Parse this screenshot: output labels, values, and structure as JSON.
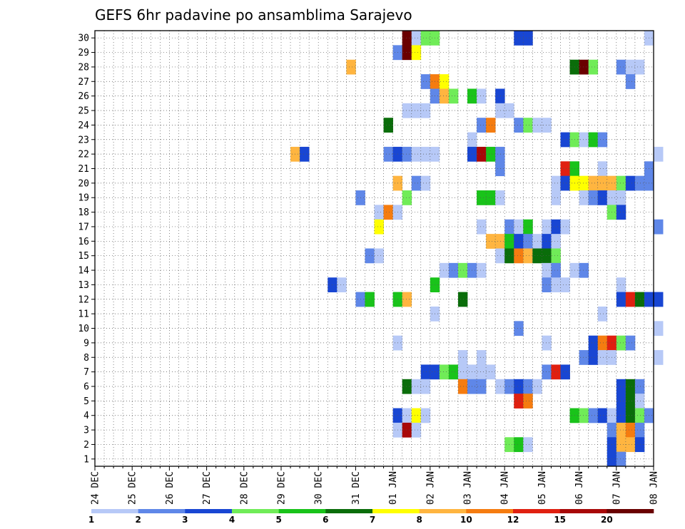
{
  "chart_data": {
    "type": "heatmap",
    "title": "GEFS 6hr padavine po ansamblima Sarajevo",
    "x_labels": [
      "24 DEC",
      "25 DEC",
      "26 DEC",
      "27 DEC",
      "28 DEC",
      "29 DEC",
      "30 DEC",
      "31 DEC",
      "01 JAN",
      "02 JAN",
      "03 JAN",
      "04 JAN",
      "05 JAN",
      "06 JAN",
      "07 JAN",
      "08 JAN"
    ],
    "x_step_hours": 6,
    "y_range": [
      1,
      30
    ],
    "y_labels": [
      "1",
      "2",
      "3",
      "4",
      "5",
      "6",
      "7",
      "8",
      "9",
      "10",
      "11",
      "12",
      "13",
      "14",
      "15",
      "16",
      "17",
      "18",
      "19",
      "20",
      "21",
      "22",
      "23",
      "24",
      "25",
      "26",
      "27",
      "28",
      "29",
      "30"
    ],
    "grid": true,
    "colorbar": {
      "labels": [
        "1",
        "2",
        "3",
        "4",
        "5",
        "6",
        "7",
        "8",
        "10",
        "12",
        "15",
        "20"
      ],
      "colors": [
        "#b7c9f7",
        "#5f87e8",
        "#1846d3",
        "#70ec58",
        "#19c31a",
        "#0a6d0a",
        "#ffff00",
        "#ffb540",
        "#f57c10",
        "#e02010",
        "#a80808",
        "#6a0000"
      ]
    },
    "cells": [
      {
        "member": 30,
        "slot": 33,
        "level": 12
      },
      {
        "member": 30,
        "slot": 34,
        "level": 1
      },
      {
        "member": 30,
        "slot": 35,
        "level": 4
      },
      {
        "member": 30,
        "slot": 36,
        "level": 4
      },
      {
        "member": 30,
        "slot": 45,
        "level": 3
      },
      {
        "member": 30,
        "slot": 46,
        "level": 3
      },
      {
        "member": 30,
        "slot": 59,
        "level": 1
      },
      {
        "member": 29,
        "slot": 32,
        "level": 2
      },
      {
        "member": 29,
        "slot": 33,
        "level": 12
      },
      {
        "member": 29,
        "slot": 34,
        "level": 7
      },
      {
        "member": 28,
        "slot": 27,
        "level": 8
      },
      {
        "member": 28,
        "slot": 51,
        "level": 6
      },
      {
        "member": 28,
        "slot": 52,
        "level": 12
      },
      {
        "member": 28,
        "slot": 53,
        "level": 4
      },
      {
        "member": 28,
        "slot": 56,
        "level": 2
      },
      {
        "member": 28,
        "slot": 57,
        "level": 1
      },
      {
        "member": 28,
        "slot": 58,
        "level": 1
      },
      {
        "member": 27,
        "slot": 35,
        "level": 2
      },
      {
        "member": 27,
        "slot": 36,
        "level": 9
      },
      {
        "member": 27,
        "slot": 37,
        "level": 7
      },
      {
        "member": 27,
        "slot": 57,
        "level": 2
      },
      {
        "member": 26,
        "slot": 36,
        "level": 2
      },
      {
        "member": 26,
        "slot": 37,
        "level": 8
      },
      {
        "member": 26,
        "slot": 38,
        "level": 4
      },
      {
        "member": 26,
        "slot": 40,
        "level": 5
      },
      {
        "member": 26,
        "slot": 41,
        "level": 1
      },
      {
        "member": 26,
        "slot": 43,
        "level": 3
      },
      {
        "member": 25,
        "slot": 33,
        "level": 1
      },
      {
        "member": 25,
        "slot": 34,
        "level": 1
      },
      {
        "member": 25,
        "slot": 35,
        "level": 1
      },
      {
        "member": 25,
        "slot": 43,
        "level": 1
      },
      {
        "member": 25,
        "slot": 44,
        "level": 1
      },
      {
        "member": 24,
        "slot": 31,
        "level": 6
      },
      {
        "member": 24,
        "slot": 41,
        "level": 2
      },
      {
        "member": 24,
        "slot": 42,
        "level": 9
      },
      {
        "member": 24,
        "slot": 45,
        "level": 2
      },
      {
        "member": 24,
        "slot": 46,
        "level": 4
      },
      {
        "member": 24,
        "slot": 47,
        "level": 1
      },
      {
        "member": 24,
        "slot": 48,
        "level": 1
      },
      {
        "member": 23,
        "slot": 40,
        "level": 1
      },
      {
        "member": 23,
        "slot": 50,
        "level": 3
      },
      {
        "member": 23,
        "slot": 51,
        "level": 4
      },
      {
        "member": 23,
        "slot": 52,
        "level": 1
      },
      {
        "member": 23,
        "slot": 53,
        "level": 5
      },
      {
        "member": 23,
        "slot": 54,
        "level": 2
      },
      {
        "member": 22,
        "slot": 21,
        "level": 8
      },
      {
        "member": 22,
        "slot": 22,
        "level": 3
      },
      {
        "member": 22,
        "slot": 31,
        "level": 2
      },
      {
        "member": 22,
        "slot": 32,
        "level": 3
      },
      {
        "member": 22,
        "slot": 33,
        "level": 2
      },
      {
        "member": 22,
        "slot": 34,
        "level": 1
      },
      {
        "member": 22,
        "slot": 35,
        "level": 1
      },
      {
        "member": 22,
        "slot": 36,
        "level": 1
      },
      {
        "member": 22,
        "slot": 40,
        "level": 3
      },
      {
        "member": 22,
        "slot": 41,
        "level": 11
      },
      {
        "member": 22,
        "slot": 42,
        "level": 5
      },
      {
        "member": 22,
        "slot": 43,
        "level": 2
      },
      {
        "member": 22,
        "slot": 60,
        "level": 1
      },
      {
        "member": 21,
        "slot": 43,
        "level": 2
      },
      {
        "member": 21,
        "slot": 50,
        "level": 10
      },
      {
        "member": 21,
        "slot": 51,
        "level": 5
      },
      {
        "member": 21,
        "slot": 54,
        "level": 1
      },
      {
        "member": 21,
        "slot": 59,
        "level": 2
      },
      {
        "member": 20,
        "slot": 32,
        "level": 8
      },
      {
        "member": 20,
        "slot": 34,
        "level": 2
      },
      {
        "member": 20,
        "slot": 35,
        "level": 1
      },
      {
        "member": 20,
        "slot": 49,
        "level": 1
      },
      {
        "member": 20,
        "slot": 50,
        "level": 3
      },
      {
        "member": 20,
        "slot": 51,
        "level": 7
      },
      {
        "member": 20,
        "slot": 52,
        "level": 7
      },
      {
        "member": 20,
        "slot": 53,
        "level": 8
      },
      {
        "member": 20,
        "slot": 54,
        "level": 8
      },
      {
        "member": 20,
        "slot": 55,
        "level": 8
      },
      {
        "member": 20,
        "slot": 56,
        "level": 4
      },
      {
        "member": 20,
        "slot": 57,
        "level": 3
      },
      {
        "member": 20,
        "slot": 58,
        "level": 2
      },
      {
        "member": 20,
        "slot": 59,
        "level": 2
      },
      {
        "member": 19,
        "slot": 28,
        "level": 2
      },
      {
        "member": 19,
        "slot": 33,
        "level": 4
      },
      {
        "member": 19,
        "slot": 41,
        "level": 5
      },
      {
        "member": 19,
        "slot": 42,
        "level": 5
      },
      {
        "member": 19,
        "slot": 43,
        "level": 1
      },
      {
        "member": 19,
        "slot": 49,
        "level": 1
      },
      {
        "member": 19,
        "slot": 52,
        "level": 1
      },
      {
        "member": 19,
        "slot": 53,
        "level": 2
      },
      {
        "member": 19,
        "slot": 54,
        "level": 3
      },
      {
        "member": 19,
        "slot": 55,
        "level": 1
      },
      {
        "member": 19,
        "slot": 56,
        "level": 1
      },
      {
        "member": 18,
        "slot": 30,
        "level": 1
      },
      {
        "member": 18,
        "slot": 31,
        "level": 9
      },
      {
        "member": 18,
        "slot": 32,
        "level": 1
      },
      {
        "member": 18,
        "slot": 55,
        "level": 4
      },
      {
        "member": 18,
        "slot": 56,
        "level": 3
      },
      {
        "member": 17,
        "slot": 30,
        "level": 7
      },
      {
        "member": 17,
        "slot": 41,
        "level": 1
      },
      {
        "member": 17,
        "slot": 44,
        "level": 2
      },
      {
        "member": 17,
        "slot": 45,
        "level": 1
      },
      {
        "member": 17,
        "slot": 46,
        "level": 5
      },
      {
        "member": 17,
        "slot": 48,
        "level": 1
      },
      {
        "member": 17,
        "slot": 49,
        "level": 3
      },
      {
        "member": 17,
        "slot": 50,
        "level": 1
      },
      {
        "member": 17,
        "slot": 60,
        "level": 2
      },
      {
        "member": 16,
        "slot": 42,
        "level": 8
      },
      {
        "member": 16,
        "slot": 43,
        "level": 8
      },
      {
        "member": 16,
        "slot": 44,
        "level": 5
      },
      {
        "member": 16,
        "slot": 45,
        "level": 3
      },
      {
        "member": 16,
        "slot": 46,
        "level": 2
      },
      {
        "member": 16,
        "slot": 47,
        "level": 1
      },
      {
        "member": 16,
        "slot": 48,
        "level": 3
      },
      {
        "member": 16,
        "slot": 49,
        "level": 1
      },
      {
        "member": 15,
        "slot": 29,
        "level": 2
      },
      {
        "member": 15,
        "slot": 30,
        "level": 1
      },
      {
        "member": 15,
        "slot": 43,
        "level": 1
      },
      {
        "member": 15,
        "slot": 44,
        "level": 6
      },
      {
        "member": 15,
        "slot": 45,
        "level": 9
      },
      {
        "member": 15,
        "slot": 46,
        "level": 8
      },
      {
        "member": 15,
        "slot": 47,
        "level": 6
      },
      {
        "member": 15,
        "slot": 48,
        "level": 6
      },
      {
        "member": 15,
        "slot": 49,
        "level": 4
      },
      {
        "member": 14,
        "slot": 37,
        "level": 1
      },
      {
        "member": 14,
        "slot": 38,
        "level": 2
      },
      {
        "member": 14,
        "slot": 39,
        "level": 4
      },
      {
        "member": 14,
        "slot": 40,
        "level": 2
      },
      {
        "member": 14,
        "slot": 41,
        "level": 1
      },
      {
        "member": 14,
        "slot": 48,
        "level": 1
      },
      {
        "member": 14,
        "slot": 49,
        "level": 2
      },
      {
        "member": 14,
        "slot": 51,
        "level": 1
      },
      {
        "member": 14,
        "slot": 52,
        "level": 2
      },
      {
        "member": 13,
        "slot": 25,
        "level": 3
      },
      {
        "member": 13,
        "slot": 26,
        "level": 1
      },
      {
        "member": 13,
        "slot": 36,
        "level": 5
      },
      {
        "member": 13,
        "slot": 48,
        "level": 2
      },
      {
        "member": 13,
        "slot": 49,
        "level": 1
      },
      {
        "member": 13,
        "slot": 50,
        "level": 1
      },
      {
        "member": 13,
        "slot": 56,
        "level": 1
      },
      {
        "member": 12,
        "slot": 28,
        "level": 2
      },
      {
        "member": 12,
        "slot": 29,
        "level": 5
      },
      {
        "member": 12,
        "slot": 32,
        "level": 5
      },
      {
        "member": 12,
        "slot": 33,
        "level": 8
      },
      {
        "member": 12,
        "slot": 39,
        "level": 6
      },
      {
        "member": 12,
        "slot": 56,
        "level": 3
      },
      {
        "member": 12,
        "slot": 57,
        "level": 10
      },
      {
        "member": 12,
        "slot": 58,
        "level": 6
      },
      {
        "member": 12,
        "slot": 59,
        "level": 3
      },
      {
        "member": 12,
        "slot": 60,
        "level": 3
      },
      {
        "member": 11,
        "slot": 36,
        "level": 1
      },
      {
        "member": 11,
        "slot": 54,
        "level": 1
      },
      {
        "member": 10,
        "slot": 45,
        "level": 2
      },
      {
        "member": 10,
        "slot": 60,
        "level": 1
      },
      {
        "member": 9,
        "slot": 32,
        "level": 1
      },
      {
        "member": 9,
        "slot": 48,
        "level": 1
      },
      {
        "member": 9,
        "slot": 53,
        "level": 3
      },
      {
        "member": 9,
        "slot": 54,
        "level": 9
      },
      {
        "member": 9,
        "slot": 55,
        "level": 10
      },
      {
        "member": 9,
        "slot": 56,
        "level": 4
      },
      {
        "member": 9,
        "slot": 57,
        "level": 2
      },
      {
        "member": 8,
        "slot": 39,
        "level": 1
      },
      {
        "member": 8,
        "slot": 41,
        "level": 1
      },
      {
        "member": 8,
        "slot": 52,
        "level": 2
      },
      {
        "member": 8,
        "slot": 53,
        "level": 3
      },
      {
        "member": 8,
        "slot": 54,
        "level": 1
      },
      {
        "member": 8,
        "slot": 55,
        "level": 1
      },
      {
        "member": 8,
        "slot": 60,
        "level": 1
      },
      {
        "member": 7,
        "slot": 35,
        "level": 3
      },
      {
        "member": 7,
        "slot": 36,
        "level": 3
      },
      {
        "member": 7,
        "slot": 37,
        "level": 4
      },
      {
        "member": 7,
        "slot": 38,
        "level": 5
      },
      {
        "member": 7,
        "slot": 39,
        "level": 1
      },
      {
        "member": 7,
        "slot": 40,
        "level": 1
      },
      {
        "member": 7,
        "slot": 41,
        "level": 1
      },
      {
        "member": 7,
        "slot": 42,
        "level": 1
      },
      {
        "member": 7,
        "slot": 48,
        "level": 2
      },
      {
        "member": 7,
        "slot": 49,
        "level": 10
      },
      {
        "member": 7,
        "slot": 50,
        "level": 3
      },
      {
        "member": 6,
        "slot": 33,
        "level": 6
      },
      {
        "member": 6,
        "slot": 34,
        "level": 1
      },
      {
        "member": 6,
        "slot": 35,
        "level": 1
      },
      {
        "member": 6,
        "slot": 39,
        "level": 9
      },
      {
        "member": 6,
        "slot": 40,
        "level": 2
      },
      {
        "member": 6,
        "slot": 41,
        "level": 2
      },
      {
        "member": 6,
        "slot": 43,
        "level": 1
      },
      {
        "member": 6,
        "slot": 44,
        "level": 2
      },
      {
        "member": 6,
        "slot": 45,
        "level": 3
      },
      {
        "member": 6,
        "slot": 46,
        "level": 2
      },
      {
        "member": 6,
        "slot": 47,
        "level": 1
      },
      {
        "member": 6,
        "slot": 56,
        "level": 3
      },
      {
        "member": 6,
        "slot": 57,
        "level": 6
      },
      {
        "member": 6,
        "slot": 58,
        "level": 2
      },
      {
        "member": 5,
        "slot": 45,
        "level": 10
      },
      {
        "member": 5,
        "slot": 46,
        "level": 9
      },
      {
        "member": 5,
        "slot": 56,
        "level": 3
      },
      {
        "member": 5,
        "slot": 57,
        "level": 6
      },
      {
        "member": 5,
        "slot": 58,
        "level": 1
      },
      {
        "member": 4,
        "slot": 32,
        "level": 3
      },
      {
        "member": 4,
        "slot": 33,
        "level": 1
      },
      {
        "member": 4,
        "slot": 34,
        "level": 7
      },
      {
        "member": 4,
        "slot": 35,
        "level": 1
      },
      {
        "member": 4,
        "slot": 51,
        "level": 5
      },
      {
        "member": 4,
        "slot": 52,
        "level": 4
      },
      {
        "member": 4,
        "slot": 53,
        "level": 2
      },
      {
        "member": 4,
        "slot": 54,
        "level": 3
      },
      {
        "member": 4,
        "slot": 55,
        "level": 1
      },
      {
        "member": 4,
        "slot": 56,
        "level": 3
      },
      {
        "member": 4,
        "slot": 57,
        "level": 6
      },
      {
        "member": 4,
        "slot": 58,
        "level": 4
      },
      {
        "member": 4,
        "slot": 59,
        "level": 2
      },
      {
        "member": 3,
        "slot": 32,
        "level": 1
      },
      {
        "member": 3,
        "slot": 33,
        "level": 11
      },
      {
        "member": 3,
        "slot": 34,
        "level": 1
      },
      {
        "member": 3,
        "slot": 55,
        "level": 2
      },
      {
        "member": 3,
        "slot": 56,
        "level": 8
      },
      {
        "member": 3,
        "slot": 57,
        "level": 9
      },
      {
        "member": 3,
        "slot": 58,
        "level": 2
      },
      {
        "member": 2,
        "slot": 44,
        "level": 4
      },
      {
        "member": 2,
        "slot": 45,
        "level": 5
      },
      {
        "member": 2,
        "slot": 46,
        "level": 1
      },
      {
        "member": 2,
        "slot": 55,
        "level": 3
      },
      {
        "member": 2,
        "slot": 56,
        "level": 8
      },
      {
        "member": 2,
        "slot": 57,
        "level": 8
      },
      {
        "member": 2,
        "slot": 58,
        "level": 3
      },
      {
        "member": 1,
        "slot": 55,
        "level": 3
      },
      {
        "member": 1,
        "slot": 56,
        "level": 2
      }
    ]
  }
}
